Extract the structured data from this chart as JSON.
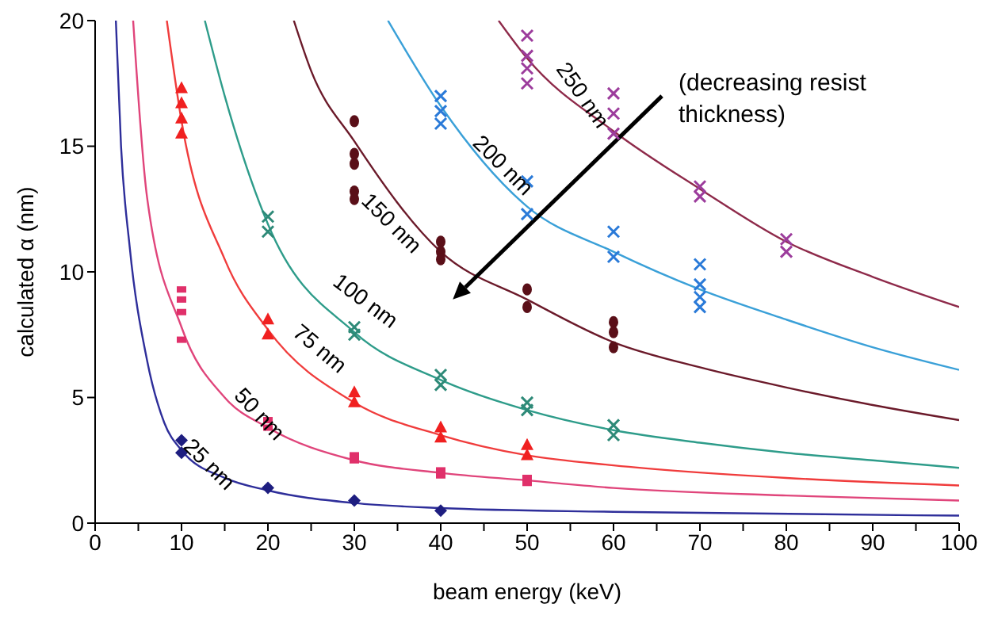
{
  "chart_data": {
    "type": "line",
    "xlabel": "beam energy (keV)",
    "ylabel": "calculated α (nm)",
    "annotations": [
      "(decreasing resist thickness)"
    ],
    "xlim": [
      0,
      100
    ],
    "xticks": [
      0,
      {
        "value": 5,
        "label": null
      },
      10,
      {
        "value": 15,
        "label": null
      },
      20,
      {
        "value": 25,
        "label": null
      },
      30,
      {
        "value": 35,
        "label": null
      },
      40,
      {
        "value": 45,
        "label": null
      },
      50,
      {
        "value": 55,
        "label": null
      },
      60,
      {
        "value": 65,
        "label": null
      },
      70,
      {
        "value": 75,
        "label": null
      },
      80,
      {
        "value": 85,
        "label": null
      },
      90,
      {
        "value": 95,
        "label": null
      },
      100
    ],
    "ylim": [
      0,
      20
    ],
    "yticks": [
      0,
      5,
      10,
      15,
      20
    ],
    "grid": false,
    "legend": false,
    "series": [
      {
        "name": "25 nm",
        "color": "#2e2e9a",
        "marker": "none",
        "x": [
          2.4,
          3,
          4,
          6,
          8,
          10,
          15,
          20,
          30,
          40,
          60,
          100
        ],
        "values": [
          20,
          15,
          11,
          6.5,
          4,
          2.9,
          1.8,
          1.3,
          0.8,
          0.6,
          0.45,
          0.3
        ]
      },
      {
        "name": "50 nm",
        "color": "#e0457b",
        "marker": "none",
        "x": [
          4.4,
          6,
          10,
          15,
          20,
          30,
          40,
          50,
          60,
          80,
          100
        ],
        "values": [
          20,
          13,
          7.8,
          5,
          3.8,
          2.5,
          2,
          1.7,
          1.4,
          1.1,
          0.9
        ]
      },
      {
        "name": "75 nm",
        "color": "#f03c3c",
        "marker": "none",
        "x": [
          8.3,
          10,
          15,
          20,
          30,
          40,
          50,
          60,
          80,
          100
        ],
        "values": [
          20,
          16,
          10.5,
          7.7,
          4.8,
          3.5,
          2.7,
          2.3,
          1.8,
          1.5
        ]
      },
      {
        "name": "100 nm",
        "color": "#2e9c8a",
        "marker": "none",
        "x": [
          12.7,
          15,
          20,
          30,
          40,
          50,
          60,
          70,
          80,
          90,
          100
        ],
        "values": [
          20,
          17,
          11.9,
          7.6,
          5.7,
          4.5,
          3.7,
          3.2,
          2.8,
          2.5,
          2.2
        ]
      },
      {
        "name": "150 nm",
        "color": "#6b1a2a",
        "marker": "none",
        "x": [
          23,
          25,
          30,
          40,
          50,
          60,
          70,
          80,
          90,
          100
        ],
        "values": [
          20,
          18,
          15.2,
          10.8,
          8.9,
          7.2,
          6.2,
          5.4,
          4.7,
          4.1
        ]
      },
      {
        "name": "200 nm",
        "color": "#3aa0d8",
        "marker": "none",
        "x": [
          33.9,
          40,
          50,
          60,
          70,
          80,
          90,
          100
        ],
        "values": [
          20,
          16.6,
          12.6,
          10.8,
          9.3,
          8.1,
          7,
          6.1
        ]
      },
      {
        "name": "250 nm",
        "color": "#8e2a4a",
        "marker": "none",
        "x": [
          46.7,
          50,
          60,
          70,
          80,
          90,
          100
        ],
        "values": [
          20,
          18.5,
          15.6,
          13.3,
          11.2,
          9.8,
          8.6
        ]
      },
      {
        "type": "scatter",
        "color": "#1e1e80",
        "marker": "diamond",
        "x": [
          10,
          10,
          20,
          30,
          40
        ],
        "values": [
          3.3,
          2.8,
          1.4,
          0.9,
          0.5
        ]
      },
      {
        "type": "scatter",
        "color": "#e0306a",
        "marker": "square",
        "x": [
          10,
          10,
          10,
          10,
          20,
          20,
          30,
          30,
          40,
          40,
          50,
          50
        ],
        "values": [
          9.3,
          8.9,
          8.4,
          7.3,
          4.1,
          3.8,
          2.7,
          2.5,
          2.1,
          1.9,
          1.8,
          1.6
        ]
      },
      {
        "type": "scatter",
        "color": "#f02020",
        "marker": "triangle",
        "x": [
          10,
          10,
          10,
          10,
          20,
          20,
          30,
          30,
          40,
          40,
          50,
          50
        ],
        "values": [
          17.3,
          16.7,
          16.1,
          15.5,
          8.1,
          7.5,
          5.2,
          4.8,
          3.8,
          3.4,
          3.1,
          2.7
        ]
      },
      {
        "type": "scatter",
        "color": "#2e8a78",
        "marker": "cross",
        "x": [
          20,
          20,
          30,
          30,
          40,
          40,
          50,
          50,
          60,
          60
        ],
        "values": [
          12.2,
          11.6,
          7.8,
          7.5,
          5.9,
          5.5,
          4.8,
          4.5,
          3.9,
          3.5
        ]
      },
      {
        "type": "scatter",
        "color": "#5a0f18",
        "marker": "circle",
        "x": [
          30,
          30,
          30,
          30,
          30,
          40,
          40,
          40,
          50,
          50,
          60,
          60,
          60
        ],
        "values": [
          16,
          14.7,
          14.3,
          13.2,
          12.9,
          11.2,
          10.8,
          10.5,
          9.3,
          8.6,
          8,
          7.6,
          7
        ]
      },
      {
        "type": "scatter",
        "color": "#2a7ad8",
        "marker": "cross",
        "x": [
          40,
          40,
          40,
          50,
          50,
          60,
          60,
          70,
          70,
          70,
          70
        ],
        "values": [
          17,
          16.4,
          15.9,
          13.6,
          12.3,
          11.6,
          10.6,
          10.3,
          9.5,
          9,
          8.6
        ]
      },
      {
        "type": "scatter",
        "color": "#9c3c9c",
        "marker": "cross",
        "x": [
          50,
          50,
          50,
          50,
          60,
          60,
          60,
          70,
          70,
          80,
          80
        ],
        "values": [
          19.4,
          18.6,
          18.1,
          17.5,
          17.1,
          16.3,
          15.5,
          13.4,
          13,
          11.3,
          10.8
        ]
      }
    ]
  }
}
